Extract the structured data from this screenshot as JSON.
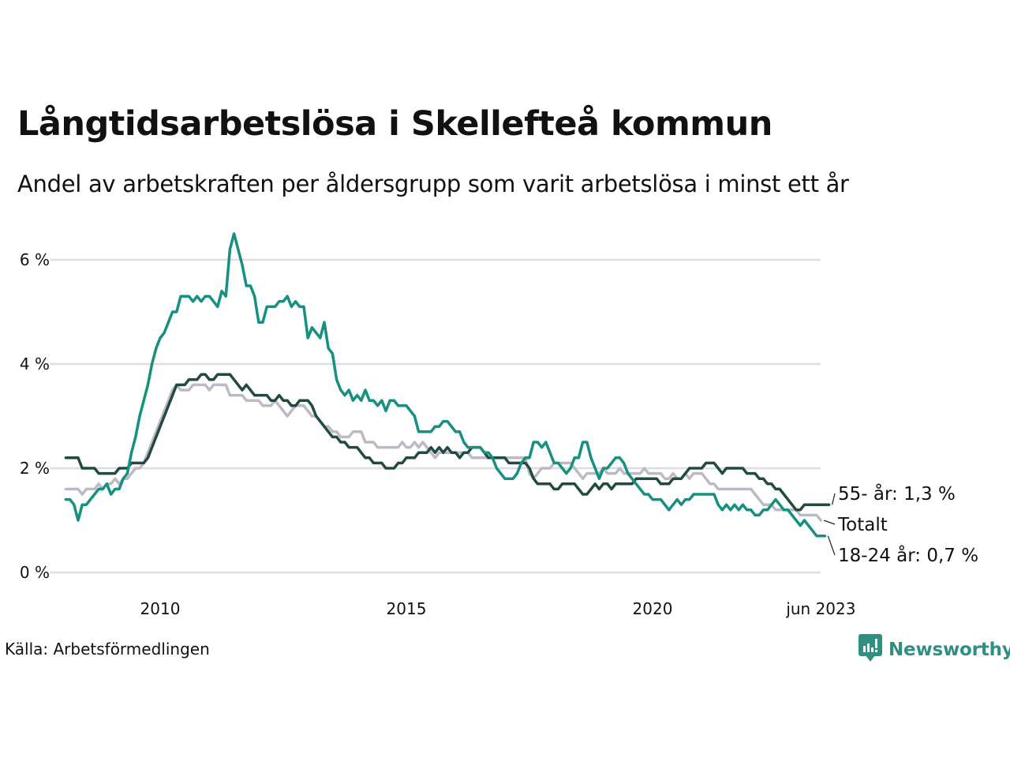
{
  "header": {
    "title": "Långtidsarbetslösa i Skellefteå kommun",
    "subtitle": "Andel av arbetskraften per åldersgrupp som varit arbetslösa i minst ett år"
  },
  "footer": {
    "source": "Källa: Arbetsförmedlingen",
    "brand": "Newsworthy",
    "brand_icon": "newsworthy-logo-icon"
  },
  "chart_data": {
    "type": "line",
    "title": "Långtidsarbetslösa i Skellefteå kommun",
    "subtitle": "Andel av arbetskraften per åldersgrupp som varit arbetslösa i minst ett år",
    "xlabel": "",
    "ylabel": "",
    "x_start": "2008-02",
    "x_end": "2023-06",
    "x_frequency": "monthly",
    "x_ticks": [
      {
        "label": "2010",
        "year": 2010.0
      },
      {
        "label": "2015",
        "year": 2015.0
      },
      {
        "label": "2020",
        "year": 2020.0
      },
      {
        "label": "jun 2023",
        "year": 2023.42
      }
    ],
    "y_ticks": [
      {
        "label": "0 %",
        "value": 0
      },
      {
        "label": "2 %",
        "value": 2
      },
      {
        "label": "4 %",
        "value": 4
      },
      {
        "label": "6 %",
        "value": 6
      }
    ],
    "ylim": [
      0,
      6.5
    ],
    "grid": true,
    "legend": "direct-labels-right",
    "series": [
      {
        "name": "Totalt",
        "end_label": "Totalt",
        "color": "#bdbac6",
        "values": [
          1.6,
          1.6,
          1.6,
          1.6,
          1.5,
          1.6,
          1.6,
          1.6,
          1.7,
          1.6,
          1.7,
          1.7,
          1.8,
          1.7,
          1.8,
          1.8,
          1.9,
          2.0,
          2.0,
          2.1,
          2.3,
          2.5,
          2.7,
          2.9,
          3.1,
          3.3,
          3.5,
          3.6,
          3.5,
          3.5,
          3.5,
          3.6,
          3.6,
          3.6,
          3.6,
          3.5,
          3.6,
          3.6,
          3.6,
          3.6,
          3.4,
          3.4,
          3.4,
          3.4,
          3.3,
          3.3,
          3.3,
          3.3,
          3.2,
          3.2,
          3.2,
          3.3,
          3.2,
          3.1,
          3.0,
          3.1,
          3.2,
          3.2,
          3.2,
          3.1,
          3.0,
          3.0,
          2.9,
          2.8,
          2.8,
          2.7,
          2.7,
          2.6,
          2.6,
          2.6,
          2.7,
          2.7,
          2.7,
          2.5,
          2.5,
          2.5,
          2.4,
          2.4,
          2.4,
          2.4,
          2.4,
          2.4,
          2.5,
          2.4,
          2.4,
          2.5,
          2.4,
          2.5,
          2.4,
          2.3,
          2.2,
          2.3,
          2.3,
          2.3,
          2.3,
          2.3,
          2.3,
          2.3,
          2.3,
          2.2,
          2.2,
          2.2,
          2.2,
          2.2,
          2.2,
          2.2,
          2.2,
          2.2,
          2.2,
          2.2,
          2.2,
          2.2,
          2.2,
          1.9,
          1.8,
          1.9,
          2.0,
          2.0,
          2.0,
          2.1,
          2.1,
          2.1,
          2.1,
          2.1,
          2.0,
          1.9,
          1.8,
          1.9,
          1.9,
          1.9,
          1.9,
          2.0,
          1.9,
          1.9,
          1.9,
          2.0,
          1.9,
          1.9,
          1.9,
          1.9,
          1.9,
          2.0,
          1.9,
          1.9,
          1.9,
          1.9,
          1.8,
          1.8,
          1.9,
          1.8,
          1.8,
          1.9,
          1.8,
          1.9,
          1.9,
          1.9,
          1.8,
          1.7,
          1.7,
          1.6,
          1.6,
          1.6,
          1.6,
          1.6,
          1.6,
          1.6,
          1.6,
          1.6,
          1.5,
          1.4,
          1.3,
          1.3,
          1.3,
          1.2,
          1.2,
          1.2,
          1.2,
          1.2,
          1.2,
          1.1,
          1.1,
          1.1,
          1.1,
          1.1,
          1.0
        ]
      },
      {
        "name": "55- år",
        "end_label": "55- år: 1,3 %",
        "color": "#214b42",
        "values": [
          2.2,
          2.2,
          2.2,
          2.2,
          2.0,
          2.0,
          2.0,
          2.0,
          1.9,
          1.9,
          1.9,
          1.9,
          1.9,
          2.0,
          2.0,
          2.0,
          2.1,
          2.1,
          2.1,
          2.1,
          2.2,
          2.4,
          2.6,
          2.8,
          3.0,
          3.2,
          3.4,
          3.6,
          3.6,
          3.6,
          3.7,
          3.7,
          3.7,
          3.8,
          3.8,
          3.7,
          3.7,
          3.8,
          3.8,
          3.8,
          3.8,
          3.7,
          3.6,
          3.5,
          3.6,
          3.5,
          3.4,
          3.4,
          3.4,
          3.4,
          3.3,
          3.3,
          3.4,
          3.3,
          3.3,
          3.2,
          3.2,
          3.3,
          3.3,
          3.3,
          3.2,
          3.0,
          2.9,
          2.8,
          2.7,
          2.6,
          2.6,
          2.5,
          2.5,
          2.4,
          2.4,
          2.4,
          2.3,
          2.2,
          2.2,
          2.1,
          2.1,
          2.1,
          2.0,
          2.0,
          2.0,
          2.1,
          2.1,
          2.2,
          2.2,
          2.2,
          2.3,
          2.3,
          2.3,
          2.4,
          2.3,
          2.4,
          2.3,
          2.4,
          2.3,
          2.3,
          2.2,
          2.3,
          2.3,
          2.4,
          2.4,
          2.4,
          2.3,
          2.2,
          2.2,
          2.2,
          2.2,
          2.2,
          2.1,
          2.1,
          2.1,
          2.1,
          2.1,
          2.0,
          1.8,
          1.7,
          1.7,
          1.7,
          1.7,
          1.6,
          1.6,
          1.7,
          1.7,
          1.7,
          1.7,
          1.6,
          1.5,
          1.5,
          1.6,
          1.7,
          1.6,
          1.7,
          1.7,
          1.6,
          1.7,
          1.7,
          1.7,
          1.7,
          1.7,
          1.8,
          1.8,
          1.8,
          1.8,
          1.8,
          1.8,
          1.7,
          1.7,
          1.7,
          1.8,
          1.8,
          1.8,
          1.9,
          2.0,
          2.0,
          2.0,
          2.0,
          2.1,
          2.1,
          2.1,
          2.0,
          1.9,
          2.0,
          2.0,
          2.0,
          2.0,
          2.0,
          1.9,
          1.9,
          1.9,
          1.8,
          1.8,
          1.7,
          1.7,
          1.6,
          1.6,
          1.5,
          1.4,
          1.3,
          1.2,
          1.2,
          1.3,
          1.3,
          1.3,
          1.3,
          1.3,
          1.3,
          1.3
        ]
      },
      {
        "name": "18-24 år",
        "end_label": "18-24 år: 0,7 %",
        "color": "#16907f",
        "values": [
          1.4,
          1.4,
          1.3,
          1.0,
          1.3,
          1.3,
          1.4,
          1.5,
          1.6,
          1.6,
          1.7,
          1.5,
          1.6,
          1.6,
          1.8,
          1.9,
          2.3,
          2.6,
          3.0,
          3.3,
          3.6,
          4.0,
          4.3,
          4.5,
          4.6,
          4.8,
          5.0,
          5.0,
          5.3,
          5.3,
          5.3,
          5.2,
          5.3,
          5.2,
          5.3,
          5.3,
          5.2,
          5.1,
          5.4,
          5.3,
          6.2,
          6.5,
          6.2,
          5.9,
          5.5,
          5.5,
          5.3,
          4.8,
          4.8,
          5.1,
          5.1,
          5.1,
          5.2,
          5.2,
          5.3,
          5.1,
          5.2,
          5.1,
          5.1,
          4.5,
          4.7,
          4.6,
          4.5,
          4.8,
          4.3,
          4.2,
          3.7,
          3.5,
          3.4,
          3.5,
          3.3,
          3.4,
          3.3,
          3.5,
          3.3,
          3.3,
          3.2,
          3.3,
          3.1,
          3.3,
          3.3,
          3.2,
          3.2,
          3.2,
          3.1,
          3.0,
          2.7,
          2.7,
          2.7,
          2.7,
          2.8,
          2.8,
          2.9,
          2.9,
          2.8,
          2.7,
          2.7,
          2.5,
          2.4,
          2.4,
          2.4,
          2.4,
          2.3,
          2.3,
          2.2,
          2.0,
          1.9,
          1.8,
          1.8,
          1.8,
          1.9,
          2.1,
          2.2,
          2.2,
          2.5,
          2.5,
          2.4,
          2.5,
          2.3,
          2.1,
          2.1,
          2.0,
          1.9,
          2.0,
          2.2,
          2.2,
          2.5,
          2.5,
          2.2,
          2.0,
          1.8,
          2.0,
          2.0,
          2.1,
          2.2,
          2.2,
          2.1,
          1.9,
          1.8,
          1.7,
          1.6,
          1.5,
          1.5,
          1.4,
          1.4,
          1.4,
          1.3,
          1.2,
          1.3,
          1.4,
          1.3,
          1.4,
          1.4,
          1.5,
          1.5,
          1.5,
          1.5,
          1.5,
          1.5,
          1.3,
          1.2,
          1.3,
          1.2,
          1.3,
          1.2,
          1.3,
          1.2,
          1.2,
          1.1,
          1.1,
          1.2,
          1.2,
          1.3,
          1.4,
          1.3,
          1.2,
          1.2,
          1.1,
          1.0,
          0.9,
          1.0,
          0.9,
          0.8,
          0.7,
          0.7,
          0.7
        ]
      }
    ]
  }
}
